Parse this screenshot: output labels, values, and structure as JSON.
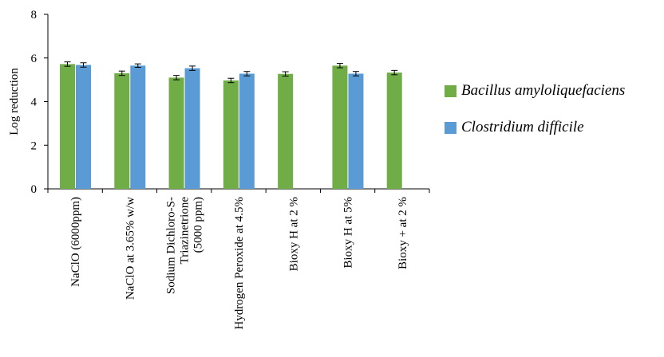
{
  "chart_data": {
    "type": "bar",
    "title": "",
    "xlabel": "",
    "ylabel": "Log reduction",
    "ylim": [
      0,
      8
    ],
    "yticks": [
      "0",
      "2",
      "4",
      "6",
      "8"
    ],
    "grid": false,
    "legend_position": "right",
    "categories": [
      [
        "NaClO (6000ppm)"
      ],
      [
        "NaClO at 3.65% w/w"
      ],
      [
        "Sodium Dichloro-S-",
        "Triazinetrione",
        "(5000 ppm)"
      ],
      [
        "Hydrogen Peroxide at 4.5%"
      ],
      [
        "Bioxy H at 2 %"
      ],
      [
        "Bioxy H at 5%"
      ],
      [
        "Bioxy + at 2 %"
      ]
    ],
    "series": [
      {
        "name": "Bacillus amyloliquefaciens",
        "color": "#71ad47",
        "values": [
          5.72,
          5.3,
          5.1,
          4.97,
          5.27,
          5.65,
          5.33
        ],
        "errors": [
          0.1,
          0.1,
          0.1,
          0.1,
          0.1,
          0.1,
          0.1
        ]
      },
      {
        "name": "Clostridium difficile",
        "color": "#5b9bd5",
        "values": [
          5.68,
          5.65,
          5.53,
          5.28,
          null,
          5.28,
          null
        ],
        "errors": [
          0.1,
          0.08,
          0.1,
          0.1,
          null,
          0.1,
          null
        ]
      }
    ]
  }
}
